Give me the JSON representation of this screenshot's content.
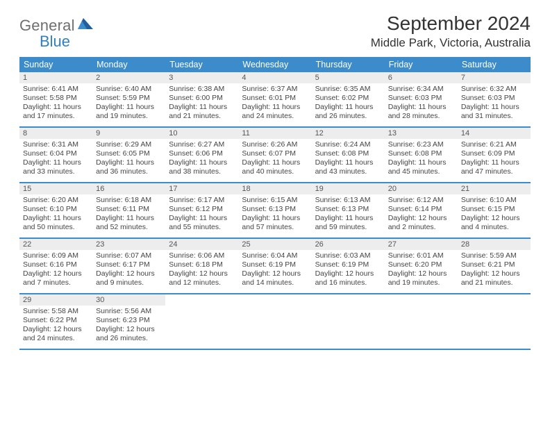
{
  "logo": {
    "part1": "General",
    "part2": "Blue"
  },
  "title": "September 2024",
  "location": "Middle Park, Victoria, Australia",
  "colors": {
    "brand_blue": "#3c8bca",
    "logo_gray": "#6f6f6f",
    "logo_blue": "#2f7fc2",
    "daynum_bg": "#ededed",
    "text": "#333333",
    "cell_text": "#444444"
  },
  "daynames": [
    "Sunday",
    "Monday",
    "Tuesday",
    "Wednesday",
    "Thursday",
    "Friday",
    "Saturday"
  ],
  "weeks": [
    [
      {
        "n": "1",
        "sr": "Sunrise: 6:41 AM",
        "ss": "Sunset: 5:58 PM",
        "d1": "Daylight: 11 hours",
        "d2": "and 17 minutes."
      },
      {
        "n": "2",
        "sr": "Sunrise: 6:40 AM",
        "ss": "Sunset: 5:59 PM",
        "d1": "Daylight: 11 hours",
        "d2": "and 19 minutes."
      },
      {
        "n": "3",
        "sr": "Sunrise: 6:38 AM",
        "ss": "Sunset: 6:00 PM",
        "d1": "Daylight: 11 hours",
        "d2": "and 21 minutes."
      },
      {
        "n": "4",
        "sr": "Sunrise: 6:37 AM",
        "ss": "Sunset: 6:01 PM",
        "d1": "Daylight: 11 hours",
        "d2": "and 24 minutes."
      },
      {
        "n": "5",
        "sr": "Sunrise: 6:35 AM",
        "ss": "Sunset: 6:02 PM",
        "d1": "Daylight: 11 hours",
        "d2": "and 26 minutes."
      },
      {
        "n": "6",
        "sr": "Sunrise: 6:34 AM",
        "ss": "Sunset: 6:03 PM",
        "d1": "Daylight: 11 hours",
        "d2": "and 28 minutes."
      },
      {
        "n": "7",
        "sr": "Sunrise: 6:32 AM",
        "ss": "Sunset: 6:03 PM",
        "d1": "Daylight: 11 hours",
        "d2": "and 31 minutes."
      }
    ],
    [
      {
        "n": "8",
        "sr": "Sunrise: 6:31 AM",
        "ss": "Sunset: 6:04 PM",
        "d1": "Daylight: 11 hours",
        "d2": "and 33 minutes."
      },
      {
        "n": "9",
        "sr": "Sunrise: 6:29 AM",
        "ss": "Sunset: 6:05 PM",
        "d1": "Daylight: 11 hours",
        "d2": "and 36 minutes."
      },
      {
        "n": "10",
        "sr": "Sunrise: 6:27 AM",
        "ss": "Sunset: 6:06 PM",
        "d1": "Daylight: 11 hours",
        "d2": "and 38 minutes."
      },
      {
        "n": "11",
        "sr": "Sunrise: 6:26 AM",
        "ss": "Sunset: 6:07 PM",
        "d1": "Daylight: 11 hours",
        "d2": "and 40 minutes."
      },
      {
        "n": "12",
        "sr": "Sunrise: 6:24 AM",
        "ss": "Sunset: 6:08 PM",
        "d1": "Daylight: 11 hours",
        "d2": "and 43 minutes."
      },
      {
        "n": "13",
        "sr": "Sunrise: 6:23 AM",
        "ss": "Sunset: 6:08 PM",
        "d1": "Daylight: 11 hours",
        "d2": "and 45 minutes."
      },
      {
        "n": "14",
        "sr": "Sunrise: 6:21 AM",
        "ss": "Sunset: 6:09 PM",
        "d1": "Daylight: 11 hours",
        "d2": "and 47 minutes."
      }
    ],
    [
      {
        "n": "15",
        "sr": "Sunrise: 6:20 AM",
        "ss": "Sunset: 6:10 PM",
        "d1": "Daylight: 11 hours",
        "d2": "and 50 minutes."
      },
      {
        "n": "16",
        "sr": "Sunrise: 6:18 AM",
        "ss": "Sunset: 6:11 PM",
        "d1": "Daylight: 11 hours",
        "d2": "and 52 minutes."
      },
      {
        "n": "17",
        "sr": "Sunrise: 6:17 AM",
        "ss": "Sunset: 6:12 PM",
        "d1": "Daylight: 11 hours",
        "d2": "and 55 minutes."
      },
      {
        "n": "18",
        "sr": "Sunrise: 6:15 AM",
        "ss": "Sunset: 6:13 PM",
        "d1": "Daylight: 11 hours",
        "d2": "and 57 minutes."
      },
      {
        "n": "19",
        "sr": "Sunrise: 6:13 AM",
        "ss": "Sunset: 6:13 PM",
        "d1": "Daylight: 11 hours",
        "d2": "and 59 minutes."
      },
      {
        "n": "20",
        "sr": "Sunrise: 6:12 AM",
        "ss": "Sunset: 6:14 PM",
        "d1": "Daylight: 12 hours",
        "d2": "and 2 minutes."
      },
      {
        "n": "21",
        "sr": "Sunrise: 6:10 AM",
        "ss": "Sunset: 6:15 PM",
        "d1": "Daylight: 12 hours",
        "d2": "and 4 minutes."
      }
    ],
    [
      {
        "n": "22",
        "sr": "Sunrise: 6:09 AM",
        "ss": "Sunset: 6:16 PM",
        "d1": "Daylight: 12 hours",
        "d2": "and 7 minutes."
      },
      {
        "n": "23",
        "sr": "Sunrise: 6:07 AM",
        "ss": "Sunset: 6:17 PM",
        "d1": "Daylight: 12 hours",
        "d2": "and 9 minutes."
      },
      {
        "n": "24",
        "sr": "Sunrise: 6:06 AM",
        "ss": "Sunset: 6:18 PM",
        "d1": "Daylight: 12 hours",
        "d2": "and 12 minutes."
      },
      {
        "n": "25",
        "sr": "Sunrise: 6:04 AM",
        "ss": "Sunset: 6:19 PM",
        "d1": "Daylight: 12 hours",
        "d2": "and 14 minutes."
      },
      {
        "n": "26",
        "sr": "Sunrise: 6:03 AM",
        "ss": "Sunset: 6:19 PM",
        "d1": "Daylight: 12 hours",
        "d2": "and 16 minutes."
      },
      {
        "n": "27",
        "sr": "Sunrise: 6:01 AM",
        "ss": "Sunset: 6:20 PM",
        "d1": "Daylight: 12 hours",
        "d2": "and 19 minutes."
      },
      {
        "n": "28",
        "sr": "Sunrise: 5:59 AM",
        "ss": "Sunset: 6:21 PM",
        "d1": "Daylight: 12 hours",
        "d2": "and 21 minutes."
      }
    ],
    [
      {
        "n": "29",
        "sr": "Sunrise: 5:58 AM",
        "ss": "Sunset: 6:22 PM",
        "d1": "Daylight: 12 hours",
        "d2": "and 24 minutes."
      },
      {
        "n": "30",
        "sr": "Sunrise: 5:56 AM",
        "ss": "Sunset: 6:23 PM",
        "d1": "Daylight: 12 hours",
        "d2": "and 26 minutes."
      },
      {
        "empty": true
      },
      {
        "empty": true
      },
      {
        "empty": true
      },
      {
        "empty": true
      },
      {
        "empty": true
      }
    ]
  ]
}
